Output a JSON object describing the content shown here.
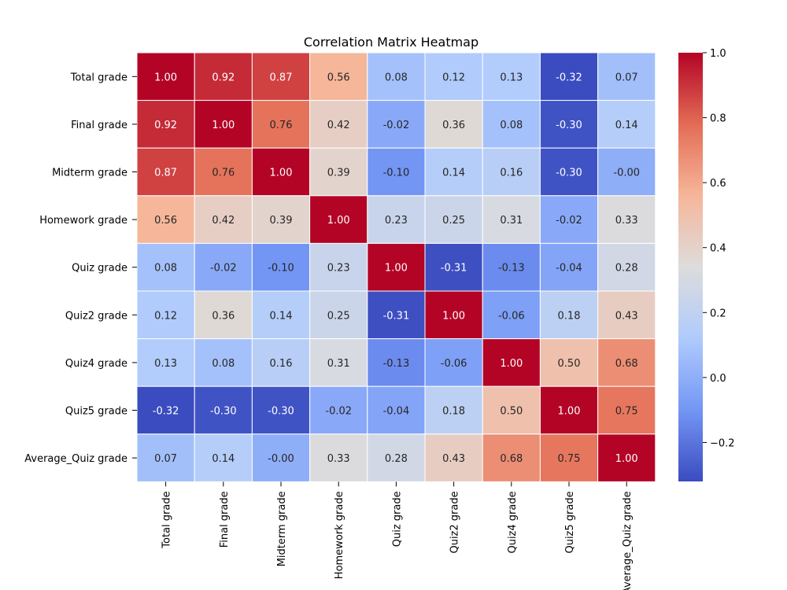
{
  "chart_data": {
    "type": "heatmap",
    "title": "Correlation Matrix Heatmap",
    "rows": [
      "Total grade",
      "Final grade",
      "Midterm grade",
      "Homework grade",
      "Quiz grade",
      "Quiz2 grade",
      "Quiz4 grade",
      "Quiz5 grade",
      "Average_Quiz grade"
    ],
    "columns": [
      "Total grade",
      "Final grade",
      "Midterm grade",
      "Homework grade",
      "Quiz grade",
      "Quiz2 grade",
      "Quiz4 grade",
      "Quiz5 grade",
      "Average_Quiz grade"
    ],
    "values": [
      [
        1.0,
        0.92,
        0.87,
        0.56,
        0.08,
        0.12,
        0.13,
        -0.32,
        0.07
      ],
      [
        0.92,
        1.0,
        0.76,
        0.42,
        -0.02,
        0.36,
        0.08,
        -0.3,
        0.14
      ],
      [
        0.87,
        0.76,
        1.0,
        0.39,
        -0.1,
        0.14,
        0.16,
        -0.3,
        -0.0
      ],
      [
        0.56,
        0.42,
        0.39,
        1.0,
        0.23,
        0.25,
        0.31,
        -0.02,
        0.33
      ],
      [
        0.08,
        -0.02,
        -0.1,
        0.23,
        1.0,
        -0.31,
        -0.13,
        -0.04,
        0.28
      ],
      [
        0.12,
        0.36,
        0.14,
        0.25,
        -0.31,
        1.0,
        -0.06,
        0.18,
        0.43
      ],
      [
        0.13,
        0.08,
        0.16,
        0.31,
        -0.13,
        -0.06,
        1.0,
        0.5,
        0.68
      ],
      [
        -0.32,
        -0.3,
        -0.3,
        -0.02,
        -0.04,
        0.18,
        0.5,
        1.0,
        0.75
      ],
      [
        0.07,
        0.14,
        -0.0,
        0.33,
        0.28,
        0.43,
        0.68,
        0.75,
        1.0
      ]
    ],
    "value_labels": [
      [
        "1.00",
        "0.92",
        "0.87",
        "0.56",
        "0.08",
        "0.12",
        "0.13",
        "-0.32",
        "0.07"
      ],
      [
        "0.92",
        "1.00",
        "0.76",
        "0.42",
        "-0.02",
        "0.36",
        "0.08",
        "-0.30",
        "0.14"
      ],
      [
        "0.87",
        "0.76",
        "1.00",
        "0.39",
        "-0.10",
        "0.14",
        "0.16",
        "-0.30",
        "-0.00"
      ],
      [
        "0.56",
        "0.42",
        "0.39",
        "1.00",
        "0.23",
        "0.25",
        "0.31",
        "-0.02",
        "0.33"
      ],
      [
        "0.08",
        "-0.02",
        "-0.10",
        "0.23",
        "1.00",
        "-0.31",
        "-0.13",
        "-0.04",
        "0.28"
      ],
      [
        "0.12",
        "0.36",
        "0.14",
        "0.25",
        "-0.31",
        "1.00",
        "-0.06",
        "0.18",
        "0.43"
      ],
      [
        "0.13",
        "0.08",
        "0.16",
        "0.31",
        "-0.13",
        "-0.06",
        "1.00",
        "0.50",
        "0.68"
      ],
      [
        "-0.32",
        "-0.30",
        "-0.30",
        "-0.02",
        "-0.04",
        "0.18",
        "0.50",
        "1.00",
        "0.75"
      ],
      [
        "0.07",
        "0.14",
        "-0.00",
        "0.33",
        "0.28",
        "0.43",
        "0.68",
        "0.75",
        "1.00"
      ]
    ],
    "colormap": "coolwarm",
    "colormap_stops": [
      "#3b4cc0",
      "#7396f5",
      "#b0cbfc",
      "#dddcdc",
      "#f6b69a",
      "#e36c55",
      "#b40426"
    ],
    "color_range": [
      -0.32,
      1.0
    ],
    "colorbar": {
      "ticks": [
        -0.2,
        0.0,
        0.2,
        0.4,
        0.6,
        0.8,
        1.0
      ],
      "tick_labels": [
        "−0.2",
        "0.0",
        "0.2",
        "0.4",
        "0.6",
        "0.8",
        "1.0"
      ]
    },
    "annotations": true,
    "grid": false,
    "cell_separator_color": "#ffffff",
    "xlabel": "",
    "ylabel": ""
  }
}
